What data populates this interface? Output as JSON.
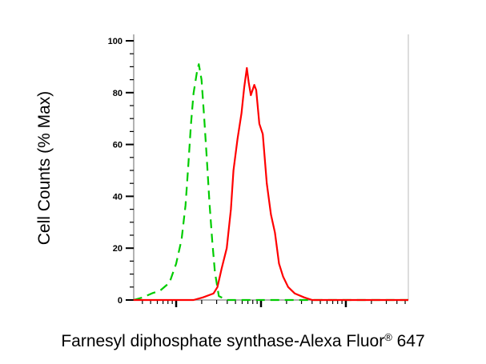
{
  "chart_data": {
    "type": "line",
    "title": "",
    "xlabel": "Farnesyl diphosphate synthase-Alexa Fluor",
    "xlabel_superscript": "®",
    "xlabel_suffix": " 647",
    "ylabel": "Cell Counts (% Max)",
    "x_scale": "log",
    "xlim": [
      3.16,
      5450
    ],
    "ylim": [
      0,
      100
    ],
    "yticks": [
      0,
      20,
      40,
      60,
      80,
      100
    ],
    "ytick_labels": [
      "0",
      "20",
      "40",
      "60",
      "80",
      "100"
    ],
    "x_major_ticks": [
      10,
      100,
      1000
    ],
    "x_tick_labels_shown": false,
    "grid": false,
    "legend": "none",
    "series": [
      {
        "color": "#00cc00",
        "style": "dashed",
        "x": [
          3.14,
          4.05,
          5.21,
          6.47,
          8.34,
          10,
          11.6,
          12.9,
          13.9,
          14.9,
          16.0,
          17.6,
          18.5,
          19.9,
          21.4,
          23.0,
          24.7,
          26.6,
          28.6,
          31.8,
          39.5,
          5450
        ],
        "y": [
          0,
          1.0,
          2.6,
          3.6,
          6.7,
          14,
          23.4,
          36.5,
          52,
          67.4,
          79.7,
          88,
          91,
          85,
          70.5,
          54,
          37.6,
          23.1,
          10.8,
          1.5,
          0,
          0
        ]
      },
      {
        "color": "#ff0000",
        "style": "solid",
        "x": [
          3.14,
          16.0,
          20.6,
          27.5,
          30.7,
          34.3,
          39.5,
          44.2,
          47.4,
          52.8,
          58.9,
          63.4,
          68.1,
          71.6,
          75.9,
          83.4,
          87.7,
          95.5,
          105,
          117,
          131,
          146,
          163,
          182,
          209,
          251,
          323,
          402,
          5450
        ],
        "y": [
          0,
          0,
          1,
          2.5,
          5,
          12,
          20,
          35,
          50,
          62,
          72,
          82,
          89.5,
          84,
          79,
          83,
          81,
          68,
          64,
          45,
          33,
          26,
          14,
          9,
          5,
          2.5,
          1,
          0,
          0
        ]
      }
    ]
  }
}
